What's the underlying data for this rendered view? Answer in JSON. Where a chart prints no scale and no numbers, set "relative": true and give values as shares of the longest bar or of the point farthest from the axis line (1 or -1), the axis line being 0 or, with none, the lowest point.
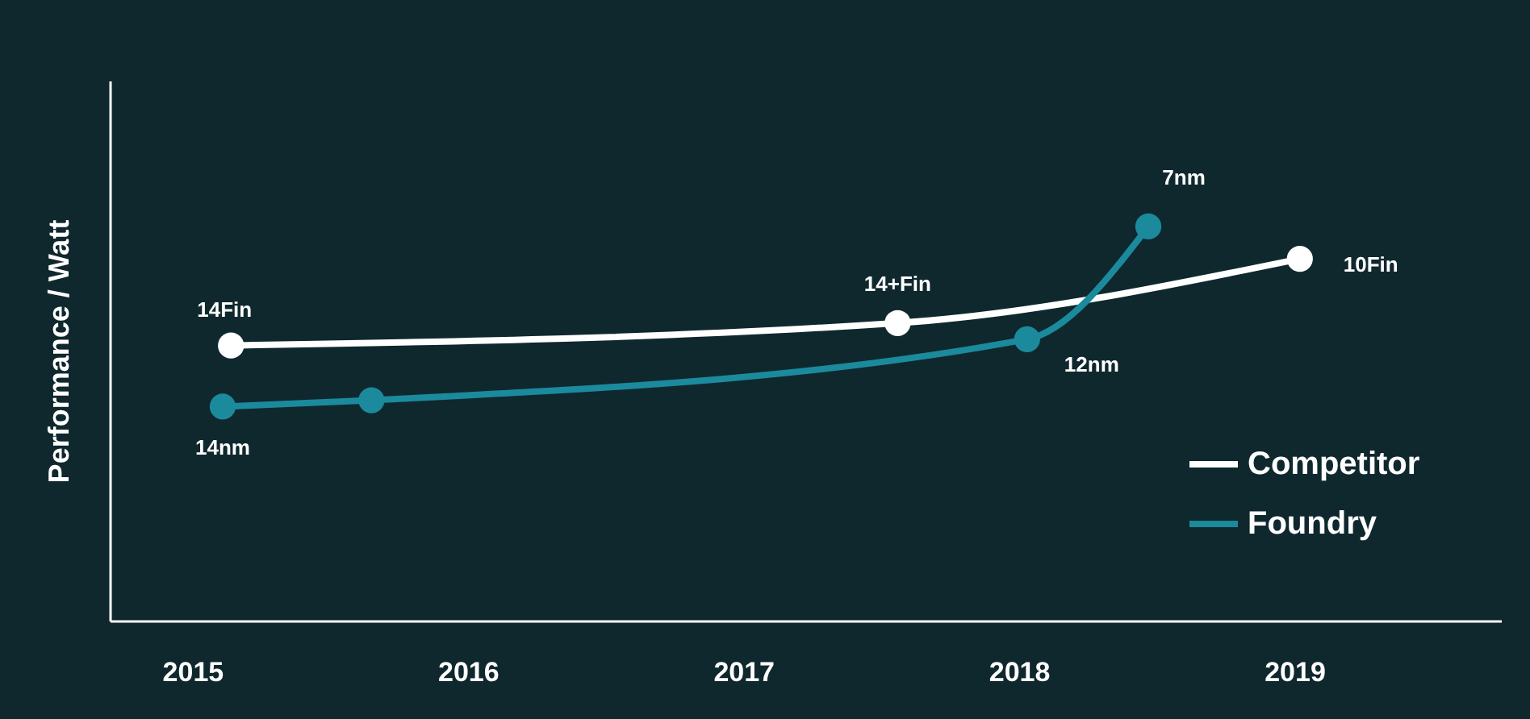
{
  "chart_data": {
    "type": "line",
    "relative": true,
    "ylabel": "Performance / Watt",
    "series": [
      {
        "name": "Competitor",
        "color": "#ffffff",
        "x": [
          2015.14,
          2017.56,
          2019.02
        ],
        "values": [
          0.698,
          0.755,
          0.918
        ]
      },
      {
        "name": "Foundry",
        "color": "#1b8a9c",
        "x": [
          2015.11,
          2015.65,
          2018.03,
          2018.47
        ],
        "values": [
          0.543,
          0.559,
          0.714,
          1
        ]
      }
    ],
    "xlim": [
      2014.7,
      2019.75
    ],
    "xticks": [
      2015,
      2016,
      2017,
      2018,
      2019
    ],
    "annotations": [
      {
        "text": "14Fin",
        "x": 2015.14,
        "y": 0.698
      },
      {
        "text": "14+Fin",
        "x": 2017.56,
        "y": 0.755
      },
      {
        "text": "10Fin",
        "x": 2019.02,
        "y": 0.918
      },
      {
        "text": "14nm",
        "x": 2015.11,
        "y": 0.543
      },
      {
        "text": "12nm",
        "x": 2018.03,
        "y": 0.714
      },
      {
        "text": "7nm",
        "x": 2018.47,
        "y": 1
      }
    ],
    "marker": "circle",
    "line_style": "solid",
    "grid": false,
    "legend": "bottom right"
  }
}
